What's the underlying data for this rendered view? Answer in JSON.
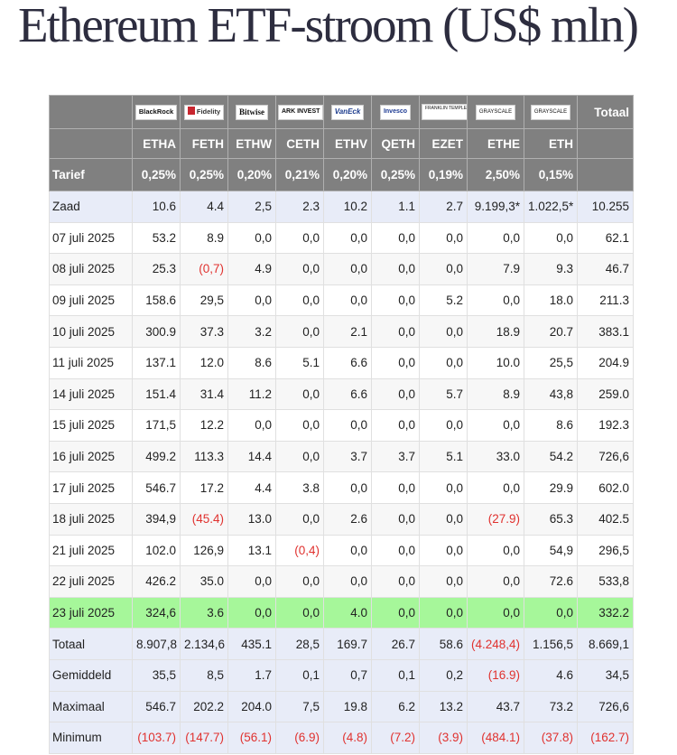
{
  "title": "Ethereum ETF-stroom (US$ mln)",
  "logos": [
    "BlackRock",
    "Fidelity",
    "Bitwise",
    "ARK INVEST",
    "VanEck",
    "Invesco",
    "FRANKLIN TEMPLETON",
    "GRAYSCALE",
    "GRAYSCALE"
  ],
  "total_header": "Totaal",
  "tickers": [
    "ETHA",
    "FETH",
    "ETHW",
    "CETH",
    "ETHV",
    "QETH",
    "EZET",
    "ETHE",
    "ETH"
  ],
  "fees": {
    "label": "Tarief",
    "values": [
      "0,25%",
      "0,25%",
      "0,20%",
      "0,21%",
      "0,20%",
      "0,25%",
      "0,19%",
      "2,50%",
      "0,15%"
    ]
  },
  "rows": [
    {
      "label": "Zaad",
      "values": [
        "10.6",
        "4.4",
        "2,5",
        "2.3",
        "10.2",
        "1.1",
        "2.7",
        "9.199,3*",
        "1.022,5*",
        "10.255"
      ]
    },
    {
      "label": "07 juli 2025",
      "values": [
        "53.2",
        "8.9",
        "0,0",
        "0,0",
        "0,0",
        "0,0",
        "0,0",
        "0,0",
        "0,0",
        "62.1"
      ]
    },
    {
      "label": "08 juli 2025",
      "values": [
        "25.3",
        "(0,7)",
        "4.9",
        "0,0",
        "0,0",
        "0,0",
        "0,0",
        "7.9",
        "9.3",
        "46.7"
      ]
    },
    {
      "label": "09 juli 2025",
      "values": [
        "158.6",
        "29,5",
        "0,0",
        "0,0",
        "0,0",
        "0,0",
        "5.2",
        "0,0",
        "18.0",
        "211.3"
      ]
    },
    {
      "label": "10 juli 2025",
      "values": [
        "300.9",
        "37.3",
        "3.2",
        "0,0",
        "2.1",
        "0,0",
        "0,0",
        "18.9",
        "20.7",
        "383.1"
      ]
    },
    {
      "label": "11 juli 2025",
      "values": [
        "137.1",
        "12.0",
        "8.6",
        "5.1",
        "6.6",
        "0,0",
        "0,0",
        "10.0",
        "25,5",
        "204.9"
      ]
    },
    {
      "label": "14 juli 2025",
      "values": [
        "151.4",
        "31.4",
        "11.2",
        "0,0",
        "6.6",
        "0,0",
        "5.7",
        "8.9",
        "43,8",
        "259.0"
      ]
    },
    {
      "label": "15 juli 2025",
      "values": [
        "171,5",
        "12.2",
        "0,0",
        "0,0",
        "0,0",
        "0,0",
        "0,0",
        "0,0",
        "8.6",
        "192.3"
      ]
    },
    {
      "label": "16 juli 2025",
      "values": [
        "499.2",
        "113.3",
        "14.4",
        "0,0",
        "3.7",
        "3.7",
        "5.1",
        "33.0",
        "54.2",
        "726,6"
      ]
    },
    {
      "label": "17 juli 2025",
      "values": [
        "546.7",
        "17.2",
        "4.4",
        "3.8",
        "0,0",
        "0,0",
        "0,0",
        "0,0",
        "29.9",
        "602.0"
      ]
    },
    {
      "label": "18 juli 2025",
      "values": [
        "394,9",
        "(45.4)",
        "13.0",
        "0,0",
        "2.6",
        "0,0",
        "0,0",
        "(27.9)",
        "65.3",
        "402.5"
      ]
    },
    {
      "label": "21 juli 2025",
      "values": [
        "102.0",
        "126,9",
        "13.1",
        "(0,4)",
        "0,0",
        "0,0",
        "0,0",
        "0,0",
        "54,9",
        "296,5"
      ]
    },
    {
      "label": "22 juli 2025",
      "values": [
        "426.2",
        "35.0",
        "0,0",
        "0,0",
        "0,0",
        "0,0",
        "0,0",
        "0,0",
        "72.6",
        "533,8"
      ]
    },
    {
      "label": "23 juli 2025",
      "values": [
        "324,6",
        "3.6",
        "0,0",
        "0,0",
        "4.0",
        "0,0",
        "0,0",
        "0,0",
        "0,0",
        "332.2"
      ]
    },
    {
      "label": "Totaal",
      "values": [
        "8.907,8",
        "2.134,6",
        "435.1",
        "28,5",
        "169.7",
        "26.7",
        "58.6",
        "(4.248,4)",
        "1.156,5",
        "8.669,1"
      ]
    },
    {
      "label": "Gemiddeld",
      "values": [
        "35,5",
        "8,5",
        "1.7",
        "0,1",
        "0,7",
        "0,1",
        "0,2",
        "(16.9)",
        "4.6",
        "34,5"
      ]
    },
    {
      "label": "Maximaal",
      "values": [
        "546.7",
        "202.2",
        "204.0",
        "7,5",
        "19.8",
        "6.2",
        "13.2",
        "43.7",
        "73.2",
        "726,6"
      ]
    },
    {
      "label": "Minimum",
      "values": [
        "(103.7)",
        "(147.7)",
        "(56.1)",
        "(6.9)",
        "(4.8)",
        "(7.2)",
        "(3.9)",
        "(484.1)",
        "(37.8)",
        "(162.7)"
      ]
    }
  ]
}
